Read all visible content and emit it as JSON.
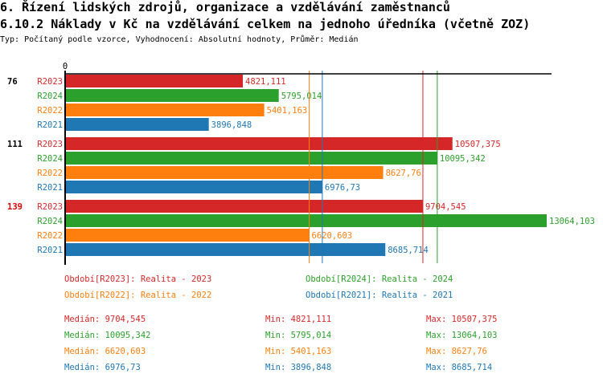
{
  "header": {
    "title": "6. Řízení lidských zdrojů, organizace a vzdělávání zaměstnanců",
    "subtitle": "6.10.2 Náklady v Kč na vzdělávání celkem na jednoho úředníka (včetně ZOZ)",
    "info": "Typ: Počítaný podle vzorce, Vyhodnocení: Absolutní hodnoty, Průměr: Medián"
  },
  "chart_data": {
    "type": "bar",
    "orientation": "horizontal",
    "xlim": [
      0,
      13100
    ],
    "x_tick_labels": [
      "0"
    ],
    "colors": {
      "R2023": "#d62728",
      "R2024": "#2ca02c",
      "R2022": "#ff7f0e",
      "R2021": "#1f77b4"
    },
    "groups": [
      {
        "label": "76",
        "highlight": false,
        "bars": [
          {
            "series": "R2023",
            "value": 4821.111,
            "label": "4821,111"
          },
          {
            "series": "R2024",
            "value": 5795.014,
            "label": "5795,014"
          },
          {
            "series": "R2022",
            "value": 5401.163,
            "label": "5401,163"
          },
          {
            "series": "R2021",
            "value": 3896.848,
            "label": "3896,848"
          }
        ]
      },
      {
        "label": "111",
        "highlight": false,
        "bars": [
          {
            "series": "R2023",
            "value": 10507.375,
            "label": "10507,375"
          },
          {
            "series": "R2024",
            "value": 10095.342,
            "label": "10095,342"
          },
          {
            "series": "R2022",
            "value": 8627.76,
            "label": "8627,76"
          },
          {
            "series": "R2021",
            "value": 6976.73,
            "label": "6976,73"
          }
        ]
      },
      {
        "label": "139",
        "highlight": true,
        "bars": [
          {
            "series": "R2023",
            "value": 9704.545,
            "label": "9704,545"
          },
          {
            "series": "R2024",
            "value": 13064.103,
            "label": "13064,103"
          },
          {
            "series": "R2022",
            "value": 6620.603,
            "label": "6620,603"
          },
          {
            "series": "R2021",
            "value": 8685.714,
            "label": "8685,714"
          }
        ]
      }
    ],
    "median_lines": [
      {
        "series": "R2023",
        "value": 9704.545
      },
      {
        "series": "R2024",
        "value": 10095.342
      },
      {
        "series": "R2022",
        "value": 6620.603
      },
      {
        "series": "R2021",
        "value": 6976.73
      }
    ],
    "legend": [
      "Období[R2023]: Realita - 2023",
      "Období[R2024]: Realita - 2024",
      "Období[R2022]: Realita - 2022",
      "Období[R2021]: Realita - 2021"
    ],
    "stats": [
      {
        "series": "R2023",
        "median": "Medián: 9704,545",
        "min": "Min: 4821,111",
        "max": "Max: 10507,375"
      },
      {
        "series": "R2024",
        "median": "Medián: 10095,342",
        "min": "Min: 5795,014",
        "max": "Max: 13064,103"
      },
      {
        "series": "R2022",
        "median": "Medián: 6620,603",
        "min": "Min: 5401,163",
        "max": "Max: 8627,76"
      },
      {
        "series": "R2021",
        "median": "Medián: 6976,73",
        "min": "Min: 3896,848",
        "max": "Max: 8685,714"
      }
    ]
  }
}
